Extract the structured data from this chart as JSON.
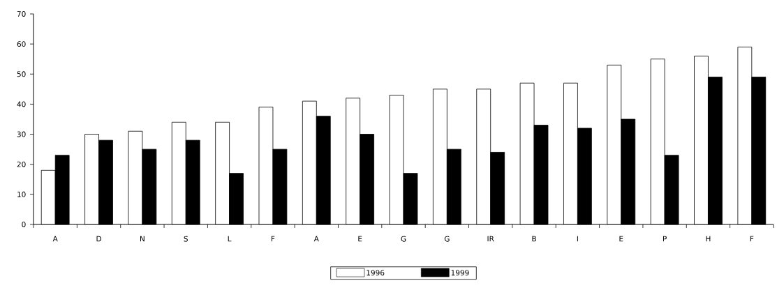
{
  "chart_data": {
    "type": "bar",
    "categories": [
      "A",
      "D",
      "N",
      "S",
      "L",
      "F",
      "A",
      "E",
      "G",
      "G",
      "IR",
      "B",
      "I",
      "E",
      "P",
      "H",
      "F"
    ],
    "series": [
      {
        "name": "1996",
        "color": "#ffffff",
        "values": [
          18,
          30,
          31,
          34,
          34,
          39,
          41,
          42,
          43,
          45,
          45,
          47,
          47,
          53,
          55,
          56,
          59
        ]
      },
      {
        "name": "1999",
        "color": "#000000",
        "values": [
          23,
          28,
          25,
          28,
          17,
          25,
          36,
          30,
          17,
          25,
          24,
          33,
          32,
          35,
          23,
          49,
          49
        ]
      }
    ],
    "ylim": [
      0,
      70
    ],
    "yticks": [
      0,
      10,
      20,
      30,
      40,
      50,
      60,
      70
    ],
    "grid": false,
    "legend": "bottom"
  }
}
